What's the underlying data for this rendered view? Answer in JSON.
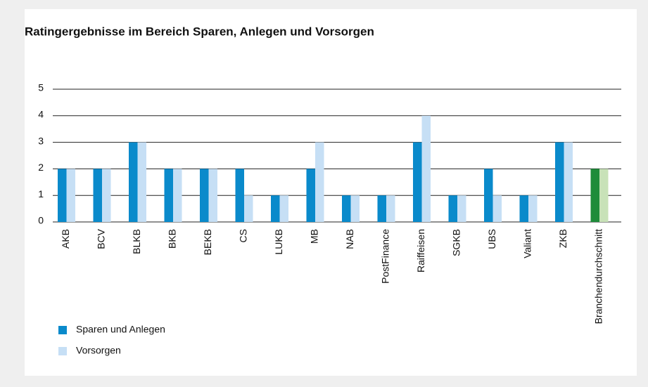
{
  "chart_data": {
    "type": "grouped_bar",
    "title": "Ratingergebnisse im Bereich Sparen, Anlegen und Vorsorgen",
    "categories": [
      "AKB",
      "BCV",
      "BLKB",
      "BKB",
      "BEKB",
      "CS",
      "LUKB",
      "MB",
      "NAB",
      "PostFinance",
      "Raiffeisen",
      "SGKB",
      "UBS",
      "Valiant",
      "ZKB",
      "Branchendurchschnitt"
    ],
    "series": [
      {
        "name": "Sparen und Anlegen",
        "color": "#0a8acb",
        "values": [
          2,
          2,
          3,
          2,
          2,
          2,
          1,
          2,
          1,
          1,
          3,
          1,
          2,
          1,
          3,
          2
        ]
      },
      {
        "name": "Vorsorgen",
        "color": "#c6dff5",
        "values": [
          2,
          2,
          3,
          2,
          2,
          1,
          1,
          3,
          1,
          1,
          4,
          1,
          1,
          1,
          3,
          2
        ]
      }
    ],
    "highlight_category": "Branchendurchschnitt",
    "highlight_colors": [
      "#1e8c3a",
      "#c8e2b8"
    ],
    "ylim": [
      0,
      5
    ],
    "yticks": [
      0,
      1,
      2,
      3,
      4,
      5
    ],
    "grid": true,
    "legend": "bottom-left"
  }
}
